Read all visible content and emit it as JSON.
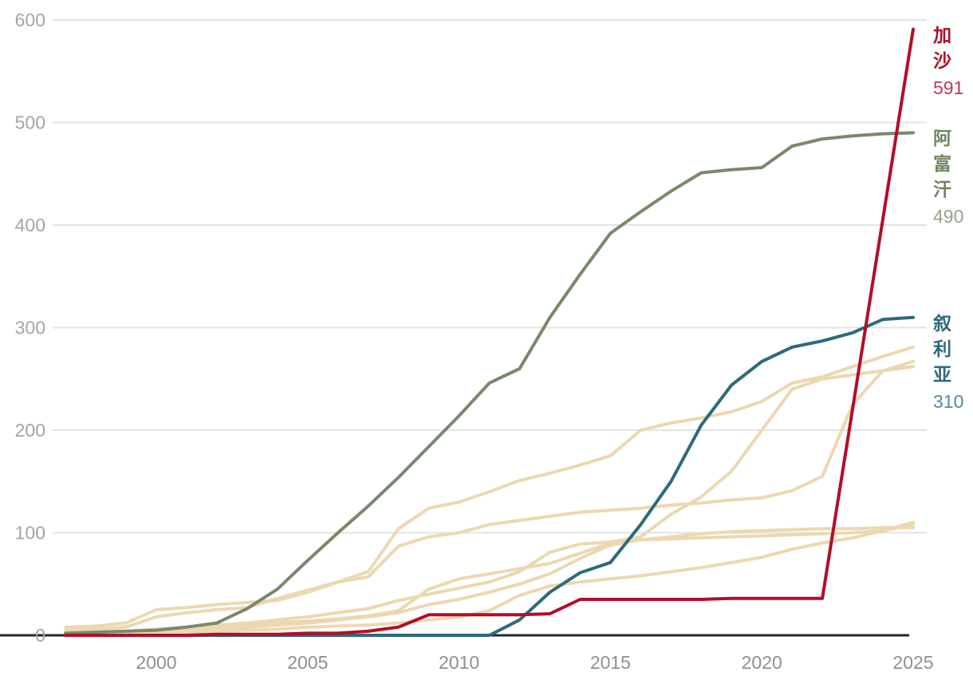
{
  "chart_data": {
    "type": "line",
    "title": "",
    "xlabel": "",
    "ylabel": "",
    "x_start_year": 1997,
    "x_end_year": 2025,
    "x": [
      1997,
      1998,
      1999,
      2000,
      2001,
      2002,
      2003,
      2004,
      2005,
      2006,
      2007,
      2008,
      2009,
      2010,
      2011,
      2012,
      2013,
      2014,
      2015,
      2016,
      2017,
      2018,
      2019,
      2020,
      2021,
      2022,
      2023,
      2024,
      2025
    ],
    "x_tick_labels": [
      "2000",
      "2005",
      "2010",
      "2015",
      "2020",
      "2025"
    ],
    "x_tick_years": [
      2000,
      2005,
      2010,
      2015,
      2020,
      2025
    ],
    "y_tick_labels": [
      "0",
      "100",
      "200",
      "300",
      "400",
      "500",
      "600"
    ],
    "y_tick_values": [
      0,
      100,
      200,
      300,
      400,
      500,
      600
    ],
    "ylim": [
      0,
      600
    ],
    "grid": "horizontal",
    "legend_position": "right-edge-labels",
    "colors": {
      "gridline": "#e3e3e3",
      "baseline": "#262626",
      "y_tick_text": "#a4a4a4",
      "x_tick_text": "#8f8f8f",
      "background_line": "#ecd8b0"
    },
    "series": [
      {
        "key": "gaza",
        "name": "加沙",
        "value_label": "591",
        "role": "highlight",
        "z": 9,
        "color": "#b30d28",
        "label_color": "#a91328",
        "value_color": "#bf3a54",
        "values": [
          0,
          0,
          0,
          0,
          0,
          1,
          1,
          1,
          2,
          2,
          4,
          8,
          20,
          20,
          20,
          20,
          21,
          35,
          35,
          35,
          35,
          35,
          36,
          36,
          36,
          36,
          221,
          406,
          591
        ]
      },
      {
        "key": "afghanistan",
        "name": "阿富汗",
        "value_label": "490",
        "role": "highlight",
        "z": 7,
        "color": "#78896c",
        "label_color": "#70855f",
        "value_color": "#93a289",
        "values": [
          2,
          3,
          4,
          5,
          8,
          12,
          26,
          45,
          73,
          100,
          126,
          154,
          184,
          214,
          246,
          260,
          310,
          352,
          392,
          413,
          433,
          451,
          454,
          456,
          477,
          484,
          487,
          489,
          490
        ]
      },
      {
        "key": "syria",
        "name": "叙利亚",
        "value_label": "310",
        "role": "highlight",
        "z": 8,
        "color": "#2d6a7c",
        "label_color": "#2c6a7c",
        "value_color": "#55889b",
        "values": [
          0,
          0,
          0,
          0,
          0,
          0,
          0,
          0,
          0,
          0,
          0,
          0,
          0,
          0,
          0,
          15,
          42,
          61,
          71,
          108,
          150,
          205,
          244,
          267,
          281,
          287,
          295,
          308,
          310
        ]
      },
      {
        "key": "background-1",
        "name": "",
        "value_label": "",
        "role": "background",
        "z": 1,
        "color": "#ecd8b0",
        "values": [
          8,
          9,
          12,
          25,
          27,
          30,
          32,
          34,
          42,
          52,
          62,
          104,
          124,
          130,
          140,
          151,
          158,
          166,
          175,
          200,
          207,
          212,
          218,
          228,
          246,
          252,
          262,
          272,
          281
        ]
      },
      {
        "key": "background-2",
        "name": "",
        "value_label": "",
        "role": "background",
        "z": 2,
        "color": "#ecd8b0",
        "values": [
          5,
          6,
          8,
          18,
          22,
          25,
          27,
          36,
          44,
          52,
          57,
          87,
          96,
          100,
          108,
          112,
          116,
          120,
          122,
          124,
          127,
          129,
          132,
          134,
          141,
          155,
          225,
          258,
          267
        ]
      },
      {
        "key": "background-3",
        "name": "",
        "value_label": "",
        "role": "background",
        "z": 3,
        "color": "#ecd8b0",
        "values": [
          2,
          3,
          4,
          6,
          8,
          10,
          12,
          15,
          18,
          22,
          26,
          34,
          40,
          46,
          52,
          62,
          81,
          89,
          91,
          96,
          118,
          135,
          160,
          200,
          240,
          250,
          254,
          258,
          262
        ]
      },
      {
        "key": "background-4",
        "name": "",
        "value_label": "",
        "role": "background",
        "z": 4,
        "color": "#ecd8b0",
        "values": [
          1,
          2,
          3,
          4,
          5,
          6,
          8,
          10,
          12,
          15,
          18,
          22,
          30,
          35,
          42,
          50,
          60,
          75,
          88,
          93,
          96,
          99,
          101,
          102,
          103,
          104,
          104,
          105,
          105
        ]
      },
      {
        "key": "background-5",
        "name": "",
        "value_label": "",
        "role": "background",
        "z": 5,
        "color": "#ecd8b0",
        "values": [
          1,
          1,
          2,
          3,
          3,
          4,
          5,
          6,
          8,
          9,
          10,
          12,
          15,
          18,
          24,
          39,
          48,
          52,
          55,
          58,
          62,
          66,
          71,
          76,
          84,
          90,
          95,
          102,
          110
        ]
      },
      {
        "key": "background-6",
        "name": "",
        "value_label": "",
        "role": "background",
        "z": 6,
        "color": "#ecd8b0",
        "values": [
          2,
          3,
          4,
          5,
          6,
          8,
          10,
          12,
          14,
          16,
          19,
          24,
          45,
          55,
          60,
          65,
          70,
          80,
          90,
          93,
          94,
          95,
          96,
          97,
          98,
          99,
          100,
          102,
          108
        ]
      }
    ]
  }
}
